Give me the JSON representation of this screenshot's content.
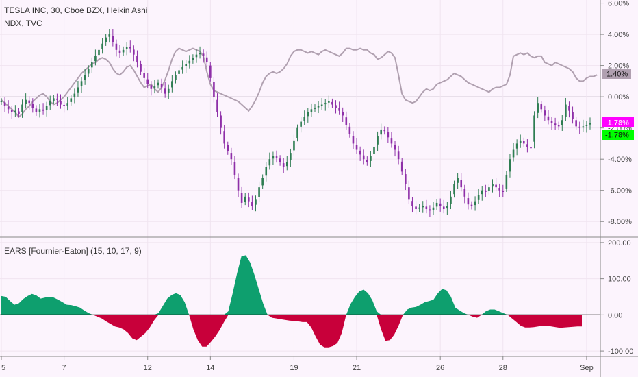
{
  "colors": {
    "background": "#fcf4fd",
    "grid": "#f0e4f0",
    "axis_line": "#888888",
    "candle_up": "#2e7d52",
    "candle_down": "#8e2fa8",
    "ndx_line": "#b0a0b0",
    "osc_up": "#0e9f6e",
    "osc_down": "#c8003a",
    "badge_ndx": "#b0a0b0",
    "badge_tsla": "#ff00ff",
    "badge_ears": "#00ff00"
  },
  "legend": {
    "main_title": "TESLA INC, 30, Cboe BZX, Heikin Ashi",
    "compare_title": "NDX, TVC",
    "osc_title": "EARS [Fournier-Eaton] (15, 10, 17, 9)"
  },
  "badges": {
    "ndx": "1.40%",
    "tsla": "-1.78%",
    "ears": "-1.78%"
  },
  "chart_data": [
    {
      "type": "line",
      "pane": "main",
      "ylim": [
        -9,
        6.2
      ],
      "y_ticks": [
        "6.00%",
        "4.00%",
        "2.00%",
        "0.00%",
        "-2.00%",
        "-4.00%",
        "-6.00%",
        "-8.00%"
      ],
      "y_tick_values": [
        6,
        4,
        2,
        0,
        -2,
        -4,
        -6,
        -8
      ],
      "x_ticks": [
        "5",
        "7",
        "12",
        "14",
        "19",
        "21",
        "26",
        "28",
        "Sep"
      ],
      "x_tick_index": [
        0,
        18,
        42,
        60,
        84,
        102,
        126,
        144,
        168
      ],
      "series": [
        {
          "name": "TESLA INC",
          "style": "heikin-ashi",
          "values": [
            -0.3,
            -0.6,
            -0.8,
            -1.0,
            -0.9,
            -1.1,
            -0.5,
            -0.2,
            -0.4,
            -0.7,
            -1.0,
            -0.8,
            -0.9,
            -0.6,
            -0.3,
            -0.1,
            -0.2,
            -0.5,
            -0.6,
            -0.4,
            -0.1,
            0.2,
            0.6,
            1.0,
            1.4,
            1.8,
            2.2,
            2.6,
            3.0,
            3.4,
            3.8,
            4.0,
            3.5,
            3.0,
            2.8,
            3.0,
            3.2,
            3.1,
            2.7,
            2.2,
            1.6,
            1.2,
            0.8,
            0.5,
            0.7,
            0.9,
            0.6,
            0.2,
            0.5,
            1.0,
            1.4,
            1.7,
            1.9,
            2.1,
            2.3,
            2.5,
            2.7,
            2.8,
            2.6,
            2.2,
            1.2,
            0.0,
            -1.0,
            -2.0,
            -3.0,
            -3.5,
            -4.0,
            -5.0,
            -6.0,
            -6.8,
            -6.4,
            -6.7,
            -7.0,
            -6.6,
            -5.8,
            -5.2,
            -4.5,
            -4.0,
            -3.8,
            -3.9,
            -4.2,
            -4.5,
            -4.2,
            -3.6,
            -2.8,
            -2.0,
            -1.6,
            -1.3,
            -1.0,
            -0.8,
            -0.7,
            -0.6,
            -0.5,
            -0.4,
            -0.3,
            -0.5,
            -0.7,
            -0.9,
            -1.2,
            -1.8,
            -2.4,
            -3.0,
            -3.4,
            -3.7,
            -4.0,
            -4.2,
            -3.8,
            -3.2,
            -2.5,
            -2.1,
            -2.2,
            -2.6,
            -3.0,
            -3.4,
            -4.0,
            -4.8,
            -5.6,
            -6.6,
            -7.0,
            -7.2,
            -7.1,
            -7.0,
            -7.2,
            -7.3,
            -7.1,
            -6.8,
            -7.0,
            -7.2,
            -7.0,
            -6.4,
            -5.6,
            -5.2,
            -5.8,
            -6.4,
            -6.9,
            -7.0,
            -6.7,
            -6.3,
            -6.0,
            -6.1,
            -5.8,
            -5.6,
            -5.8,
            -6.0,
            -6.1,
            -5.0,
            -4.0,
            -3.4,
            -3.0,
            -2.8,
            -3.0,
            -3.2,
            -3.3,
            -1.2,
            -0.4,
            -0.8,
            -1.2,
            -1.5,
            -1.7,
            -1.8,
            -1.9,
            -1.5,
            -0.5,
            -0.9,
            -1.4,
            -1.9,
            -2.0,
            -1.9,
            -1.8,
            -1.7
          ],
          "ndx_values": [
            -0.2,
            -0.4,
            -0.6,
            -0.8,
            -1.0,
            -1.3,
            -1.1,
            -0.8,
            -0.6,
            -0.3,
            -0.1,
            0.1,
            0.2,
            0.0,
            -0.3,
            -0.5,
            -0.4,
            -0.2,
            0.0,
            0.3,
            0.6,
            0.9,
            1.2,
            1.5,
            1.7,
            1.9,
            2.1,
            2.2,
            2.4,
            2.5,
            2.4,
            2.2,
            1.8,
            1.5,
            1.4,
            1.6,
            1.9,
            2.0,
            1.7,
            1.3,
            0.9,
            0.6,
            0.7,
            0.8,
            0.5,
            0.3,
            0.6,
            1.1,
            1.7,
            2.4,
            2.9,
            3.1,
            3.0,
            2.9,
            3.0,
            3.1,
            3.0,
            2.9,
            2.6,
            1.6,
            0.8,
            0.4,
            0.3,
            0.2,
            0.1,
            0.0,
            -0.1,
            -0.2,
            -0.3,
            -0.5,
            -0.7,
            -0.9,
            -0.6,
            -0.2,
            0.3,
            0.9,
            1.3,
            1.5,
            1.6,
            1.5,
            1.6,
            1.8,
            2.1,
            2.6,
            2.9,
            3.0,
            3.0,
            2.9,
            2.8,
            2.9,
            2.8,
            2.7,
            2.9,
            3.0,
            2.9,
            2.8,
            2.7,
            2.6,
            2.8,
            3.1,
            3.1,
            3.0,
            3.0,
            3.1,
            3.0,
            3.0,
            2.8,
            2.7,
            2.4,
            2.5,
            2.7,
            2.9,
            2.8,
            2.5,
            1.4,
            0.2,
            -0.2,
            -0.3,
            -0.4,
            -0.3,
            0.0,
            0.3,
            0.5,
            0.4,
            0.5,
            0.8,
            0.9,
            1.0,
            1.1,
            1.3,
            1.5,
            1.4,
            1.3,
            1.1,
            0.9,
            0.8,
            0.7,
            0.6,
            0.5,
            0.4,
            0.3,
            0.5,
            0.6,
            0.6,
            0.7,
            0.8,
            1.4,
            2.6,
            2.7,
            2.8,
            2.7,
            2.8,
            2.6,
            2.5,
            2.6,
            2.6,
            2.2,
            2.1,
            2.0,
            2.2,
            2.1,
            2.0,
            1.9,
            1.8,
            1.6,
            1.2,
            1.0,
            1.0,
            1.2,
            1.3,
            1.3,
            1.4
          ]
        }
      ]
    },
    {
      "type": "area",
      "pane": "oscillator",
      "ylim": [
        -115,
        215
      ],
      "y_ticks": [
        "200.00",
        "100.00",
        "0.00",
        "-100.00"
      ],
      "y_tick_values": [
        200,
        100,
        0,
        -100
      ],
      "series": [
        {
          "name": "EARS [Fournier-Eaton] (15, 10, 17, 9)",
          "values": [
            52,
            50,
            38,
            28,
            32,
            44,
            52,
            58,
            54,
            45,
            48,
            50,
            48,
            42,
            35,
            28,
            27,
            24,
            20,
            12,
            5,
            0,
            -5,
            -10,
            -18,
            -25,
            -32,
            -35,
            -40,
            -50,
            -65,
            -70,
            -60,
            -50,
            -35,
            -15,
            5,
            25,
            45,
            55,
            60,
            55,
            35,
            0,
            -40,
            -70,
            -88,
            -88,
            -75,
            -60,
            -42,
            -20,
            10,
            60,
            115,
            162,
            165,
            145,
            110,
            70,
            30,
            0,
            -8,
            -10,
            -12,
            -14,
            -16,
            -17,
            -18,
            -20,
            -20,
            -35,
            -60,
            -82,
            -90,
            -90,
            -86,
            -78,
            -50,
            0,
            30,
            50,
            65,
            70,
            60,
            40,
            10,
            -40,
            -72,
            -70,
            -55,
            -30,
            0,
            15,
            20,
            22,
            28,
            35,
            38,
            42,
            60,
            72,
            68,
            50,
            20,
            12,
            5,
            0,
            -5,
            -8,
            0,
            10,
            15,
            15,
            10,
            5,
            0,
            -10,
            -20,
            -30,
            -35,
            -35,
            -34,
            -32,
            -30,
            -30,
            -32,
            -34,
            -36,
            -35,
            -34,
            -33,
            -32,
            -32
          ]
        }
      ]
    }
  ]
}
